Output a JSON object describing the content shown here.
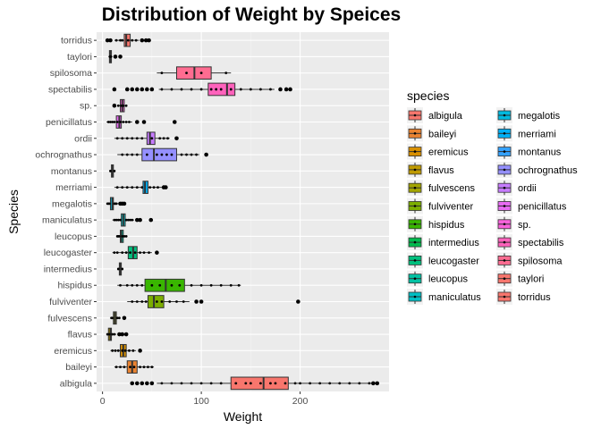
{
  "chart_data": {
    "type": "boxplot",
    "orientation": "horizontal",
    "title": "Distribution of Weight by Speices",
    "xlabel": "Weight",
    "ylabel": "Species",
    "xlim": [
      -6,
      290
    ],
    "x_ticks": [
      0,
      100,
      200
    ],
    "grid": true,
    "legend": {
      "title": "species",
      "position": "right",
      "columns": 2
    },
    "categories": [
      "torridus",
      "taylori",
      "spilosoma",
      "spectabilis",
      "sp.",
      "penicillatus",
      "ordii",
      "ochrognathus",
      "montanus",
      "merriami",
      "megalotis",
      "maniculatus",
      "leucopus",
      "leucogaster",
      "intermedius",
      "hispidus",
      "fulviventer",
      "fulvescens",
      "flavus",
      "eremicus",
      "baileyi",
      "albigula"
    ],
    "series": [
      {
        "name": "albigula",
        "color": "#F8766D",
        "q1": 130,
        "median": 163,
        "q3": 188,
        "whisker_low": 55,
        "whisker_high": 272,
        "outliers": [
          30,
          35,
          40,
          45,
          50,
          274,
          278
        ],
        "points": [
          60,
          70,
          80,
          90,
          100,
          110,
          120,
          135,
          145,
          150,
          160,
          170,
          175,
          185,
          195,
          200,
          210,
          220,
          230,
          240,
          250,
          260,
          270
        ]
      },
      {
        "name": "baileyi",
        "color": "#EA8331",
        "q1": 25,
        "median": 30,
        "q3": 35,
        "whisker_low": 12,
        "whisker_high": 52,
        "outliers": [],
        "points": [
          14,
          18,
          22,
          28,
          32,
          38,
          42,
          46,
          50
        ]
      },
      {
        "name": "eremicus",
        "color": "#D89000",
        "q1": 18,
        "median": 21,
        "q3": 24,
        "whisker_low": 8,
        "whisker_high": 34,
        "outliers": [
          38
        ],
        "points": [
          10,
          13,
          16,
          20,
          23,
          27,
          31
        ]
      },
      {
        "name": "flavus",
        "color": "#C09B00",
        "q1": 6,
        "median": 8,
        "q3": 9,
        "whisker_low": 4,
        "whisker_high": 14,
        "outliers": [
          17,
          20,
          24
        ],
        "points": [
          5,
          7,
          10,
          12
        ]
      },
      {
        "name": "fulvescens",
        "color": "#A3A500",
        "q1": 11,
        "median": 12.5,
        "q3": 14,
        "whisker_low": 8,
        "whisker_high": 18,
        "outliers": [
          22
        ],
        "points": [
          9,
          10,
          15,
          17
        ]
      },
      {
        "name": "fulviventer",
        "color": "#7CAE00",
        "q1": 46,
        "median": 52,
        "q3": 62,
        "whisker_low": 25,
        "whisker_high": 88,
        "outliers": [
          95,
          100,
          198
        ],
        "points": [
          30,
          35,
          40,
          44,
          55,
          60,
          68,
          75,
          82
        ]
      },
      {
        "name": "hispidus",
        "color": "#39B600",
        "q1": 43,
        "median": 64,
        "q3": 83,
        "whisker_low": 15,
        "whisker_high": 140,
        "outliers": [],
        "points": [
          18,
          25,
          30,
          35,
          40,
          50,
          58,
          70,
          78,
          90,
          100,
          110,
          120,
          130,
          138
        ]
      },
      {
        "name": "intermedius",
        "color": "#00BB4E",
        "q1": 17,
        "median": 18,
        "q3": 19,
        "whisker_low": 15,
        "whisker_high": 21,
        "outliers": [],
        "points": [
          16,
          20
        ]
      },
      {
        "name": "leucogaster",
        "color": "#00BF7D",
        "q1": 26,
        "median": 31,
        "q3": 35,
        "whisker_low": 10,
        "whisker_high": 50,
        "outliers": [
          55
        ],
        "points": [
          12,
          15,
          20,
          24,
          28,
          33,
          38,
          42,
          47
        ]
      },
      {
        "name": "leucopus",
        "color": "#00C1A3",
        "q1": 18,
        "median": 19,
        "q3": 21,
        "whisker_low": 14,
        "whisker_high": 25,
        "outliers": [],
        "points": [
          15,
          16,
          17,
          20,
          22,
          24
        ]
      },
      {
        "name": "maniculatus",
        "color": "#00BFC4",
        "q1": 19,
        "median": 21,
        "q3": 23,
        "whisker_low": 10,
        "whisker_high": 32,
        "outliers": [
          35,
          38,
          49
        ],
        "points": [
          12,
          14,
          16,
          18,
          24,
          26,
          28,
          30
        ]
      },
      {
        "name": "megalotis",
        "color": "#00BAE0",
        "q1": 8,
        "median": 10,
        "q3": 11,
        "whisker_low": 4,
        "whisker_high": 16,
        "outliers": [
          18,
          20,
          22
        ],
        "points": [
          5,
          6,
          7,
          12,
          13,
          14
        ]
      },
      {
        "name": "merriami",
        "color": "#00B0F6",
        "q1": 41,
        "median": 43,
        "q3": 46,
        "whisker_low": 12,
        "whisker_high": 60,
        "outliers": [
          62,
          64
        ],
        "points": [
          15,
          20,
          25,
          30,
          35,
          40,
          48,
          52,
          56
        ]
      },
      {
        "name": "montanus",
        "color": "#35A2FF",
        "q1": 9,
        "median": 10,
        "q3": 11,
        "whisker_low": 7,
        "whisker_high": 13,
        "outliers": [],
        "points": [
          8,
          12
        ]
      },
      {
        "name": "ochrognathus",
        "color": "#9590FF",
        "q1": 40,
        "median": 52,
        "q3": 75,
        "whisker_low": 15,
        "whisker_high": 98,
        "outliers": [
          105
        ],
        "points": [
          20,
          25,
          30,
          35,
          45,
          55,
          60,
          65,
          70,
          80,
          85,
          90,
          95
        ]
      },
      {
        "name": "ordii",
        "color": "#C77CFF",
        "q1": 45,
        "median": 48,
        "q3": 53,
        "whisker_low": 12,
        "whisker_high": 68,
        "outliers": [
          75
        ],
        "points": [
          15,
          20,
          25,
          30,
          35,
          40,
          50,
          58,
          62,
          66
        ]
      },
      {
        "name": "penicillatus",
        "color": "#E76BF3",
        "q1": 14,
        "median": 17,
        "q3": 19,
        "whisker_low": 4,
        "whisker_high": 30,
        "outliers": [
          35,
          42,
          73
        ],
        "points": [
          6,
          8,
          10,
          12,
          15,
          18,
          21,
          24,
          27
        ]
      },
      {
        "name": "sp.",
        "color": "#FA62DB",
        "q1": 18,
        "median": 20,
        "q3": 22,
        "whisker_low": 15,
        "whisker_high": 25,
        "outliers": [
          12
        ],
        "points": [
          16,
          19,
          21,
          24
        ]
      },
      {
        "name": "spectabilis",
        "color": "#FF62BC",
        "q1": 107,
        "median": 126,
        "q3": 134,
        "whisker_low": 57,
        "whisker_high": 174,
        "outliers": [
          12,
          25,
          30,
          35,
          40,
          45,
          50,
          180,
          186,
          190
        ],
        "points": [
          60,
          70,
          80,
          90,
          100,
          110,
          115,
          120,
          130,
          140,
          150,
          160,
          170
        ]
      },
      {
        "name": "spilosoma",
        "color": "#FF6C91",
        "q1": 75,
        "median": 93,
        "q3": 110,
        "whisker_low": 55,
        "whisker_high": 130,
        "outliers": [],
        "points": [
          60,
          85,
          100,
          125
        ]
      },
      {
        "name": "taylori",
        "color": "#F8766D",
        "q1": 7,
        "median": 8,
        "q3": 9,
        "whisker_low": 6,
        "whisker_high": 10,
        "outliers": [
          13,
          18
        ],
        "points": [
          7.5,
          8.5
        ]
      },
      {
        "name": "torridus",
        "color": "#F8766D",
        "q1": 22,
        "median": 24,
        "q3": 28,
        "whisker_low": 12,
        "whisker_high": 37,
        "outliers": [
          5,
          8,
          40,
          44,
          47
        ],
        "points": [
          14,
          18,
          20,
          26,
          30,
          34
        ]
      }
    ]
  }
}
